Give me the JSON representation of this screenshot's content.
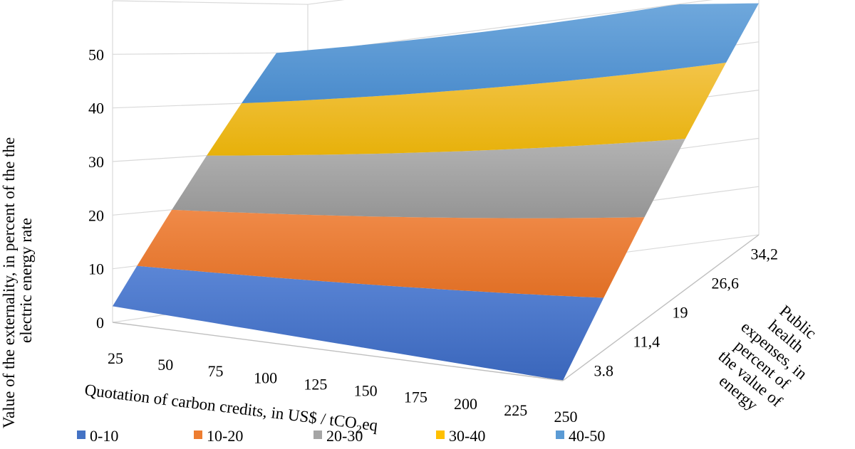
{
  "chart_data": {
    "type": "surface",
    "title": "",
    "x_axis": {
      "title_prefix": "Quotation of carbon credits, in US$ / tCO",
      "title_subscript": "2",
      "title_suffix": "eq",
      "ticks": [
        "25",
        "50",
        "75",
        "100",
        "125",
        "150",
        "175",
        "200",
        "225",
        "250"
      ]
    },
    "y_axis": {
      "title_lines": [
        "Public",
        "health",
        "expenses, in",
        "percent of",
        "the value of",
        "energy"
      ],
      "ticks": [
        "3.8",
        "11,4",
        "19",
        "26,6",
        "34,2"
      ]
    },
    "z_axis": {
      "title_lines": [
        "Value of the externality, in percent of the the",
        "electric energy rate"
      ],
      "ticks": [
        "0",
        "10",
        "20",
        "30",
        "40",
        "50"
      ],
      "range": [
        0,
        60
      ]
    },
    "surface": {
      "z_at_x_min_y_min": 3,
      "z_at_x_max_y_min": 0,
      "z_at_x_min_y_max": 59,
      "z_at_x_max_y_max": 48
    },
    "legend": {
      "position": "bottom",
      "entries": [
        {
          "label": "0-10",
          "color": "#4472C4"
        },
        {
          "label": "10-20",
          "color": "#ED7D31"
        },
        {
          "label": "20-30",
          "color": "#A5A5A5"
        },
        {
          "label": "30-40",
          "color": "#FFC000"
        },
        {
          "label": "40-50",
          "color": "#5B9BD5"
        }
      ]
    },
    "grid": true
  }
}
